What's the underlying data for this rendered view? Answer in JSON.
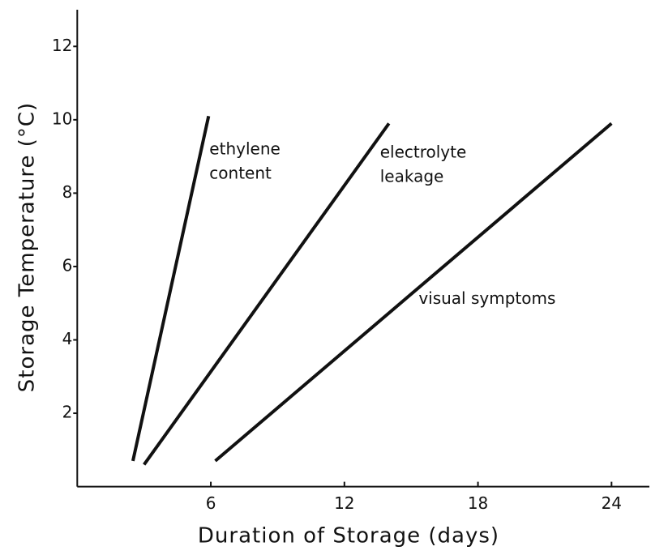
{
  "chart_data": {
    "type": "line",
    "xlabel": "Duration of Storage (days)",
    "ylabel": "Storage Temperature (°C)",
    "xlim": [
      0,
      25.7
    ],
    "xticks": [
      6,
      12,
      18,
      24
    ],
    "ylim": [
      0,
      13
    ],
    "yticks": [
      2,
      4,
      6,
      8,
      10,
      12
    ],
    "series": [
      {
        "name": "ethylene content",
        "color": "#111111",
        "x": [
          2.5,
          5.9
        ],
        "values": [
          0.7,
          10.1
        ]
      },
      {
        "name": "electrolyte leakage",
        "color": "#111111",
        "x": [
          3.0,
          14.0
        ],
        "values": [
          0.6,
          9.9
        ]
      },
      {
        "name": "visual symptoms",
        "color": "#111111",
        "x": [
          6.2,
          24.0
        ],
        "values": [
          0.7,
          9.9
        ]
      }
    ]
  }
}
